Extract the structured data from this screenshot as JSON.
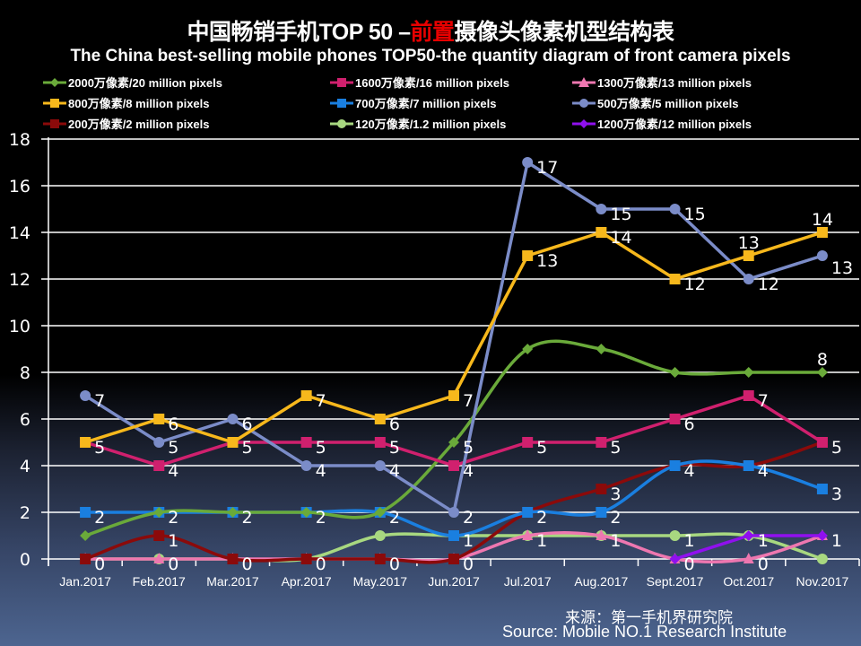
{
  "title": {
    "part1": "中国畅销手机TOP 50 –",
    "highlight": "前置",
    "part2": "摄像头像素机型结构表",
    "highlight_color": "#e60000"
  },
  "subtitle": "The China best-selling mobile phones TOP50-the quantity diagram of front camera pixels",
  "source": {
    "cn": "来源：第一手机界研究院",
    "en": "Source: Mobile NO.1 Research Institute"
  },
  "chart_data": {
    "type": "line",
    "title": "中国畅销手机TOP 50 –前置摄像头像素机型结构表",
    "subtitle": "The China best-selling mobile phones TOP50-the quantity diagram of front camera pixels",
    "xlabel": "",
    "ylabel": "",
    "ylim": [
      0,
      18
    ],
    "yticks": [
      0,
      2,
      4,
      6,
      8,
      10,
      12,
      14,
      16,
      18
    ],
    "grid": true,
    "legend_position": "top",
    "categories": [
      "Jan.2017",
      "Feb.2017",
      "Mar.2017",
      "Apr.2017",
      "May.2017",
      "Jun.2017",
      "Jul.2017",
      "Aug.2017",
      "Sept.2017",
      "Oct.2017",
      "Nov.2017"
    ],
    "series": [
      {
        "name": "2000万像素/20 million pixels",
        "color": "#6aaa3a",
        "marker": "diamond",
        "smooth": true,
        "values": [
          1,
          2,
          2,
          2,
          2,
          5,
          9,
          9,
          8,
          8,
          8
        ],
        "labels": [
          null,
          null,
          null,
          null,
          null,
          "5",
          null,
          null,
          null,
          null,
          "8"
        ]
      },
      {
        "name": "1600万像素/16 million pixels",
        "color": "#d0206e",
        "marker": "square",
        "smooth": false,
        "values": [
          5,
          4,
          5,
          5,
          5,
          4,
          5,
          5,
          6,
          7,
          5
        ],
        "labels": [
          "5",
          "4",
          "5",
          "5",
          "5",
          "4",
          "5",
          "5",
          "6",
          "7",
          "5"
        ]
      },
      {
        "name": "1300万像素/13 million pixels",
        "color": "#ee77b0",
        "marker": "triangle",
        "smooth": true,
        "values": [
          0,
          0,
          0,
          0,
          0,
          0,
          1,
          1,
          0,
          0,
          1
        ],
        "labels": [
          null,
          null,
          null,
          null,
          null,
          null,
          null,
          null,
          null,
          "0",
          null
        ]
      },
      {
        "name": "800万像素/8 million pixels",
        "color": "#f7b81c",
        "marker": "square",
        "smooth": false,
        "values": [
          5,
          6,
          5,
          7,
          6,
          7,
          13,
          14,
          12,
          13,
          14
        ],
        "labels": [
          null,
          "6",
          null,
          "7",
          "6",
          "7",
          "13",
          "14",
          "12",
          "13",
          "14"
        ]
      },
      {
        "name": "700万像素/7 million pixels",
        "color": "#1a7fe0",
        "marker": "square",
        "smooth": true,
        "values": [
          2,
          2,
          2,
          2,
          2,
          1,
          2,
          2,
          4,
          4,
          3
        ],
        "labels": [
          "2",
          "2",
          "2",
          "2",
          "2",
          null,
          "2",
          "2",
          null,
          null,
          "3"
        ]
      },
      {
        "name": "500万像素/5 million pixels",
        "color": "#7b8cc8",
        "marker": "circle",
        "smooth": false,
        "values": [
          7,
          5,
          6,
          4,
          4,
          2,
          17,
          15,
          15,
          12,
          13
        ],
        "labels": [
          "7",
          "5",
          "6",
          "4",
          "4",
          "2",
          "17",
          "15",
          "15",
          "12",
          "13"
        ]
      },
      {
        "name": "200万像素/2 million pixels",
        "color": "#8b0a0a",
        "marker": "square",
        "smooth": true,
        "values": [
          0,
          1,
          0,
          0,
          0,
          0,
          2,
          3,
          4,
          4,
          5
        ],
        "labels": [
          null,
          "1",
          null,
          null,
          "0",
          "0",
          null,
          "3",
          "4",
          "4",
          null
        ]
      },
      {
        "name": "120万像素/1.2 million pixels",
        "color": "#a8d880",
        "marker": "circle",
        "smooth": true,
        "values": [
          0,
          0,
          0,
          0,
          1,
          1,
          1,
          1,
          1,
          1,
          0
        ],
        "labels": [
          "0",
          "0",
          "0",
          "0",
          null,
          "1",
          "1",
          "1",
          "1",
          null,
          null
        ]
      },
      {
        "name": "1200万像素/12 million pixels",
        "color": "#9010ee",
        "marker": "diamond",
        "smooth": false,
        "values": [
          null,
          null,
          null,
          null,
          null,
          null,
          null,
          null,
          0,
          1,
          1
        ],
        "labels": [
          null,
          null,
          null,
          null,
          null,
          null,
          null,
          null,
          "0",
          "1",
          "1"
        ]
      }
    ]
  }
}
